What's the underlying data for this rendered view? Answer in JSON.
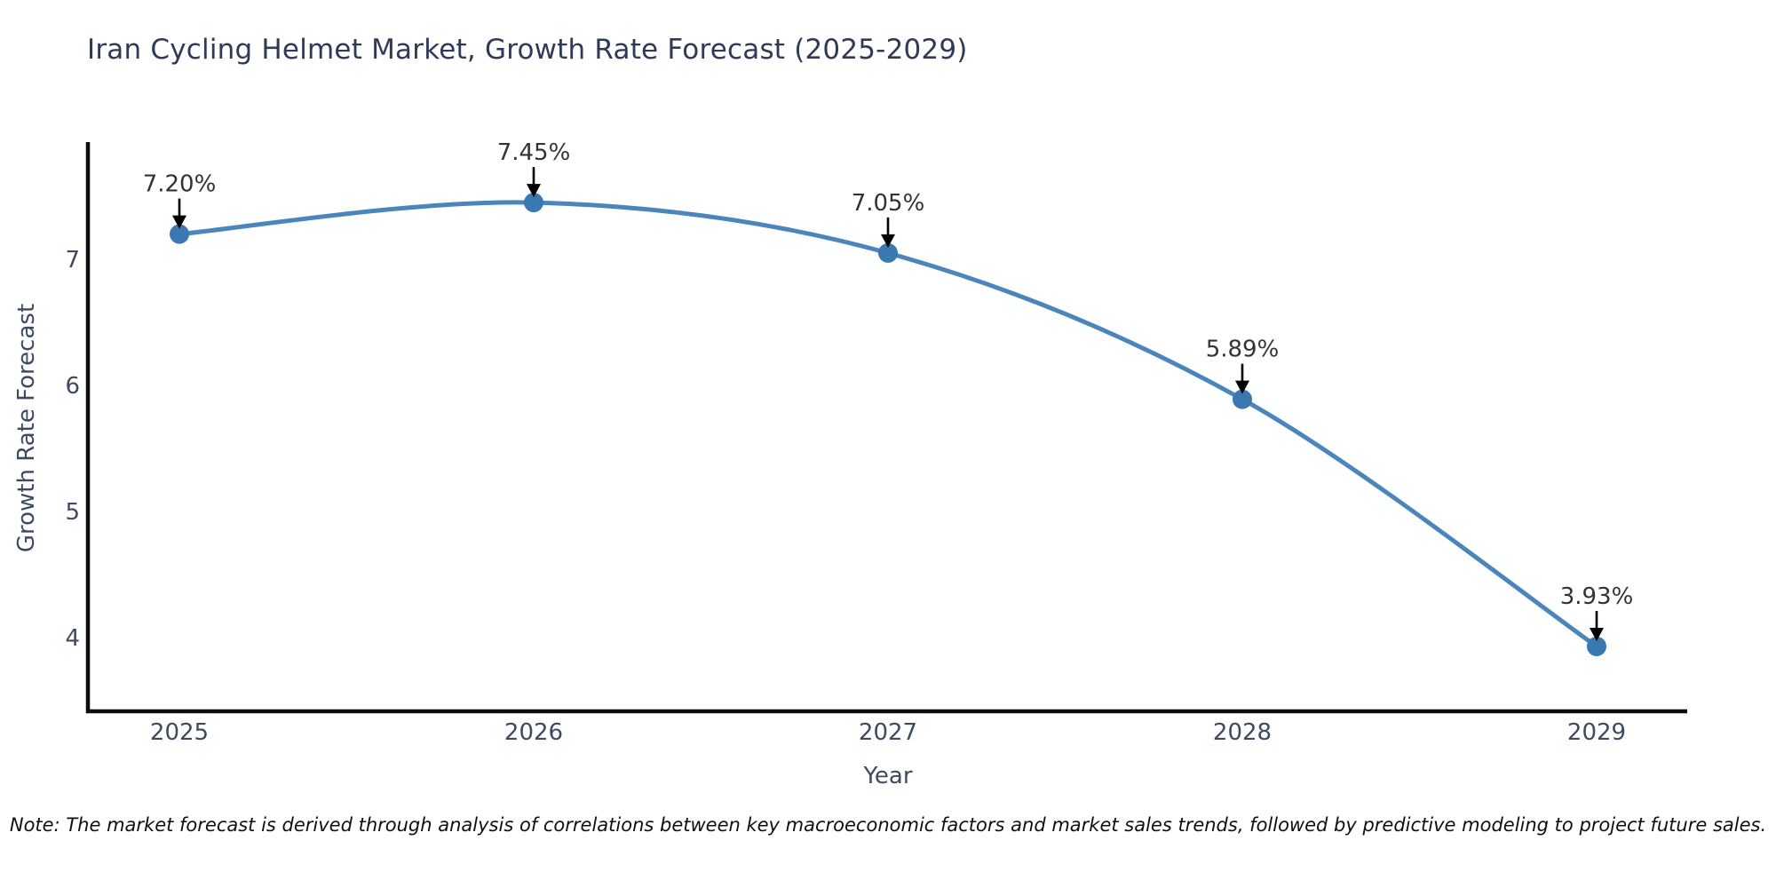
{
  "chart_data": {
    "type": "line",
    "title": "Iran Cycling Helmet Market, Growth Rate Forecast (2025-2029)",
    "xlabel": "Year",
    "ylabel": "Growth Rate Forecast",
    "categories": [
      2025,
      2026,
      2027,
      2028,
      2029
    ],
    "values": [
      7.2,
      7.45,
      7.05,
      5.89,
      3.93
    ],
    "point_labels": [
      "7.20%",
      "7.45%",
      "7.05%",
      "5.89%",
      "3.93%"
    ],
    "yticks": [
      4,
      5,
      6,
      7
    ],
    "ylim": [
      3.42,
      7.95
    ],
    "xlim": [
      2024.74,
      2029.26
    ],
    "grid": false,
    "legend": null,
    "annotation_style": "black-down-arrow",
    "colors": {
      "line": "#4a85bc",
      "marker": "#3a78b2",
      "spine": "#0d0d0d",
      "arrow": "#000000",
      "tick_label": "#3d4a63",
      "annotation_label": "#333333",
      "title": "#2e3a57"
    },
    "note": "Note: The market forecast is derived through analysis of correlations between key macroeconomic factors and market sales trends, followed by predictive modeling to project future sales."
  }
}
